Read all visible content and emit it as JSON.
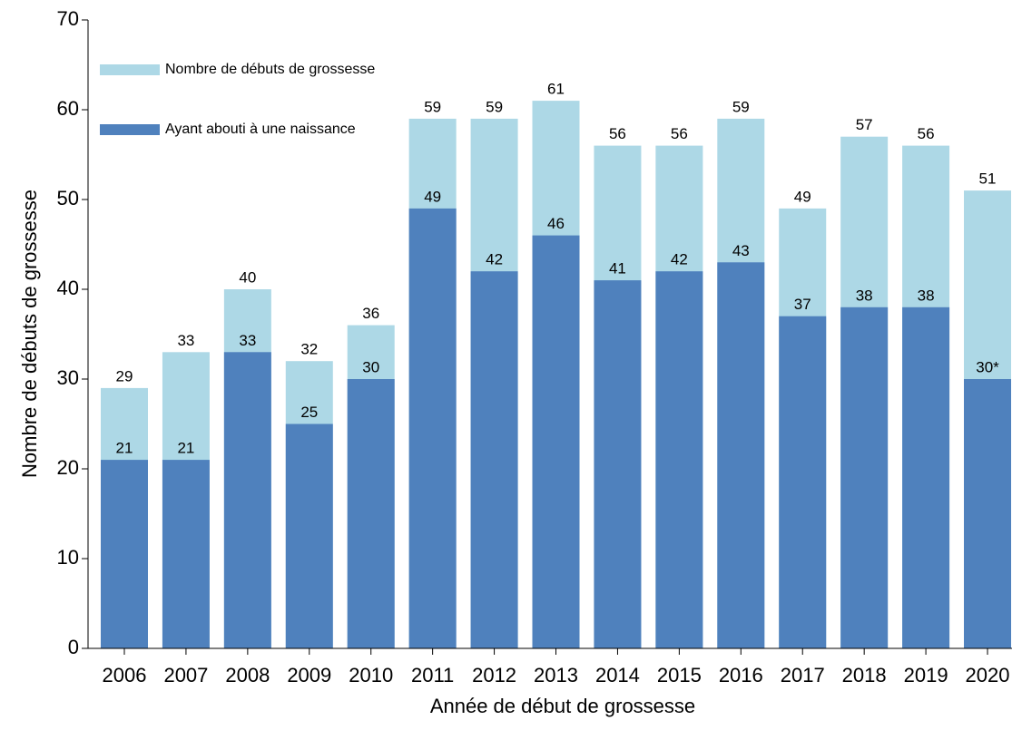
{
  "chart_data": {
    "type": "bar",
    "x_label": "Année de début de grossesse",
    "y_label": "Nombre de débuts de grossesse",
    "categories": [
      "2006",
      "2007",
      "2008",
      "2009",
      "2010",
      "2011",
      "2012",
      "2013",
      "2014",
      "2015",
      "2016",
      "2017",
      "2018",
      "2019",
      "2020"
    ],
    "series": [
      {
        "name": "Nombre de débuts de grossesse",
        "color": "#add8e6",
        "values": [
          29,
          33,
          40,
          32,
          36,
          59,
          59,
          61,
          56,
          56,
          59,
          49,
          57,
          56,
          51
        ]
      },
      {
        "name": "Ayant abouti à une naissance",
        "color": "#4f81bd",
        "values": [
          21,
          21,
          33,
          25,
          30,
          49,
          42,
          46,
          41,
          42,
          43,
          37,
          38,
          38,
          30
        ],
        "value_labels": [
          "21",
          "21",
          "33",
          "25",
          "30",
          "49",
          "42",
          "46",
          "41",
          "42",
          "43",
          "37",
          "38",
          "38",
          "30*"
        ]
      }
    ],
    "ylim": [
      0,
      70
    ],
    "yticks": [
      0,
      10,
      20,
      30,
      40,
      50,
      60,
      70
    ],
    "legend": "top-left"
  }
}
